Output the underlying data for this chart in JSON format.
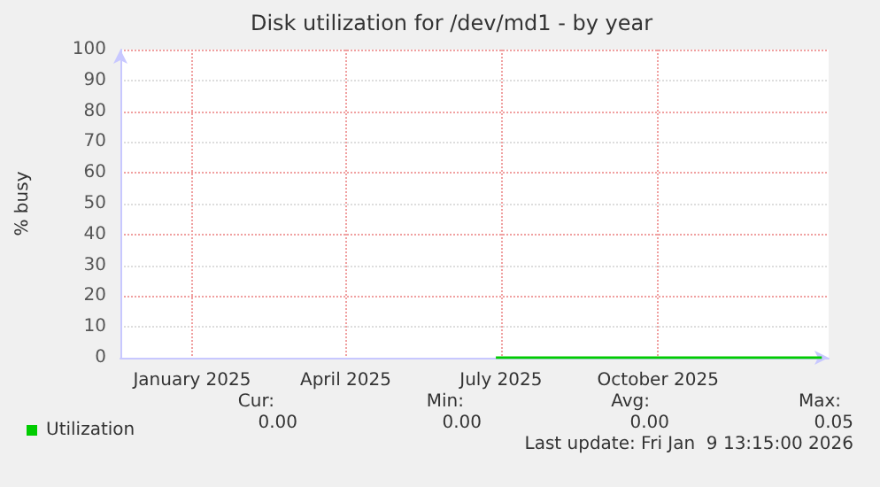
{
  "chart_data": {
    "type": "line",
    "title": "Disk utilization for /dev/md1 - by year",
    "ylabel": "% busy",
    "xlim": [
      "2024-11-20",
      "2026-01-09"
    ],
    "xticks": [
      {
        "value": "2025-01-01",
        "label": "January 2025"
      },
      {
        "value": "2025-04-01",
        "label": "April 2025"
      },
      {
        "value": "2025-07-01",
        "label": "July 2025"
      },
      {
        "value": "2025-10-01",
        "label": "October 2025"
      }
    ],
    "ylim": [
      0,
      100
    ],
    "yticks": [
      0,
      10,
      20,
      30,
      40,
      50,
      60,
      70,
      80,
      90,
      100
    ],
    "series": [
      {
        "name": "Utilization",
        "color": "#00cc00",
        "x": [
          "2025-06-28",
          "2025-08-01",
          "2025-09-01",
          "2025-10-01",
          "2025-11-01",
          "2025-12-01",
          "2026-01-05"
        ],
        "values": [
          0,
          0,
          0,
          0,
          0,
          0,
          0
        ]
      }
    ],
    "grid": true,
    "legend": "bottom left",
    "marker": "none",
    "line_style": "solid",
    "annotations": [
      "Cur:",
      "Min:",
      "Avg:",
      "Max:",
      "0.00",
      "0.00",
      "0.00",
      "0.05",
      "Last update: Fri Jan  9 13:15:00 2026"
    ]
  }
}
